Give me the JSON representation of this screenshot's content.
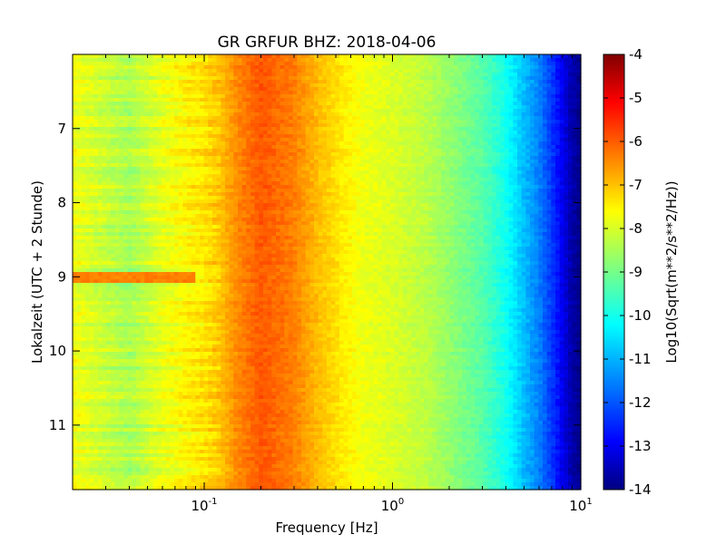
{
  "chart_data": {
    "type": "heatmap",
    "title": "GR GRFUR BHZ: 2018-04-06",
    "xlabel": "Frequency [Hz]",
    "ylabel": "Lokalzeit (UTC + 2 Stunde)",
    "x_scale": "log",
    "xlim": [
      0.02,
      10
    ],
    "x_ticks": [
      {
        "value": 0.1,
        "base": "10",
        "exp": "-1"
      },
      {
        "value": 1,
        "base": "10",
        "exp": "0"
      },
      {
        "value": 10,
        "base": "10",
        "exp": "1"
      }
    ],
    "ylim": [
      6,
      11.87
    ],
    "y_inverted": true,
    "y_ticks": [
      {
        "value": 7,
        "label": "7"
      },
      {
        "value": 8,
        "label": "8"
      },
      {
        "value": 9,
        "label": "9"
      },
      {
        "value": 10,
        "label": "10"
      },
      {
        "value": 11,
        "label": "11"
      }
    ],
    "colormap": "jet",
    "colorbar": {
      "label": "Log10(Sqrt(m**2/s**2/Hz))",
      "range": [
        -14,
        -4
      ],
      "ticks": [
        "-4",
        "-5",
        "-6",
        "-7",
        "-8",
        "-9",
        "-10",
        "-11",
        "-12",
        "-13",
        "-14"
      ]
    },
    "spectrum_profile": {
      "frequency_hz": [
        0.02,
        0.04,
        0.06,
        0.08,
        0.1,
        0.12,
        0.15,
        0.2,
        0.3,
        0.4,
        0.55,
        0.7,
        1.0,
        1.5,
        2.0,
        3.0,
        4.0,
        5.0,
        6.0,
        7.0,
        8.0,
        9.0,
        10.0
      ],
      "log10_amplitude": [
        -7.9,
        -8.6,
        -8.0,
        -7.7,
        -7.5,
        -7.2,
        -6.6,
        -6.1,
        -6.5,
        -7.1,
        -7.6,
        -7.9,
        -8.1,
        -8.4,
        -8.8,
        -9.4,
        -10.1,
        -10.9,
        -11.5,
        -12.2,
        -12.9,
        -13.6,
        -13.9
      ]
    },
    "events": [
      {
        "time": 9.0,
        "freq_range": [
          0.02,
          0.09
        ],
        "peak": -6.5
      }
    ],
    "grid": false,
    "legend": "none"
  }
}
